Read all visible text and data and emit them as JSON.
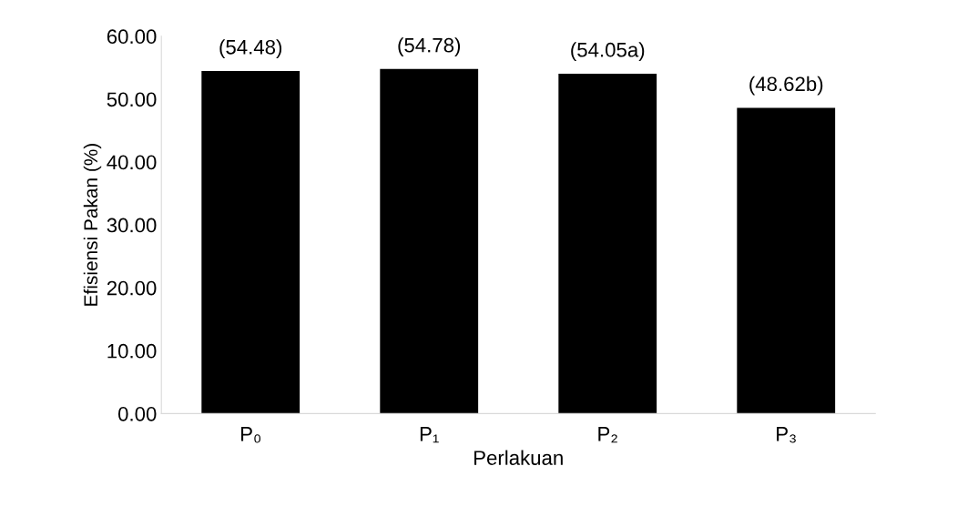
{
  "chart_data": {
    "type": "bar",
    "xlabel": "Perlakuan",
    "ylabel": "Efisiensi Pakan (%)",
    "categories": [
      "P₀",
      "P₁",
      "P₂",
      "P₃"
    ],
    "values": [
      54.48,
      54.78,
      54.05,
      48.62
    ],
    "value_labels": [
      "(54.48)",
      "(54.78)",
      "(54.05a)",
      "(48.62b)"
    ],
    "color": "#000000",
    "ylim": [
      0,
      60
    ],
    "yticks": [
      {
        "value": 0,
        "label": "0.00"
      },
      {
        "value": 10,
        "label": "10.00"
      },
      {
        "value": 20,
        "label": "20.00"
      },
      {
        "value": 30,
        "label": "30.00"
      },
      {
        "value": 40,
        "label": "40.00"
      },
      {
        "value": 50,
        "label": "50.00"
      },
      {
        "value": 60,
        "label": "60.00"
      }
    ],
    "grid": false,
    "legend": false
  }
}
